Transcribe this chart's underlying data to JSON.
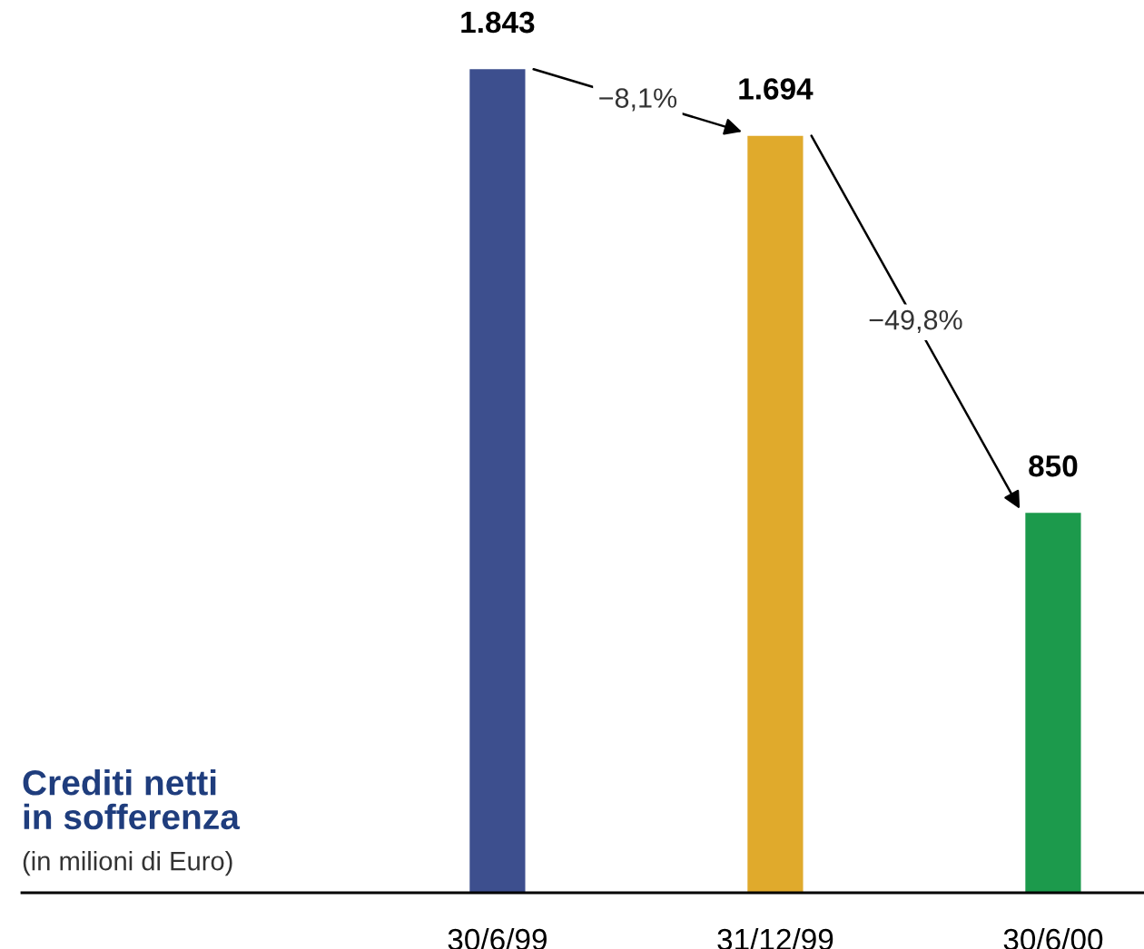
{
  "chart_data": {
    "type": "bar",
    "title": "Crediti netti\nin sofferenza",
    "subtitle": "(in milioni di Euro)",
    "categories": [
      "30/6/99",
      "31/12/99",
      "30/6/00"
    ],
    "values": [
      1843,
      1694,
      850
    ],
    "value_labels": [
      "1.843",
      "1.694",
      "850"
    ],
    "colors": [
      "#3d4f8e",
      "#e0aa2c",
      "#1c9a4c"
    ],
    "annotations": [
      "−8,1%",
      "−49,8%"
    ],
    "tick_labels": "x"
  }
}
